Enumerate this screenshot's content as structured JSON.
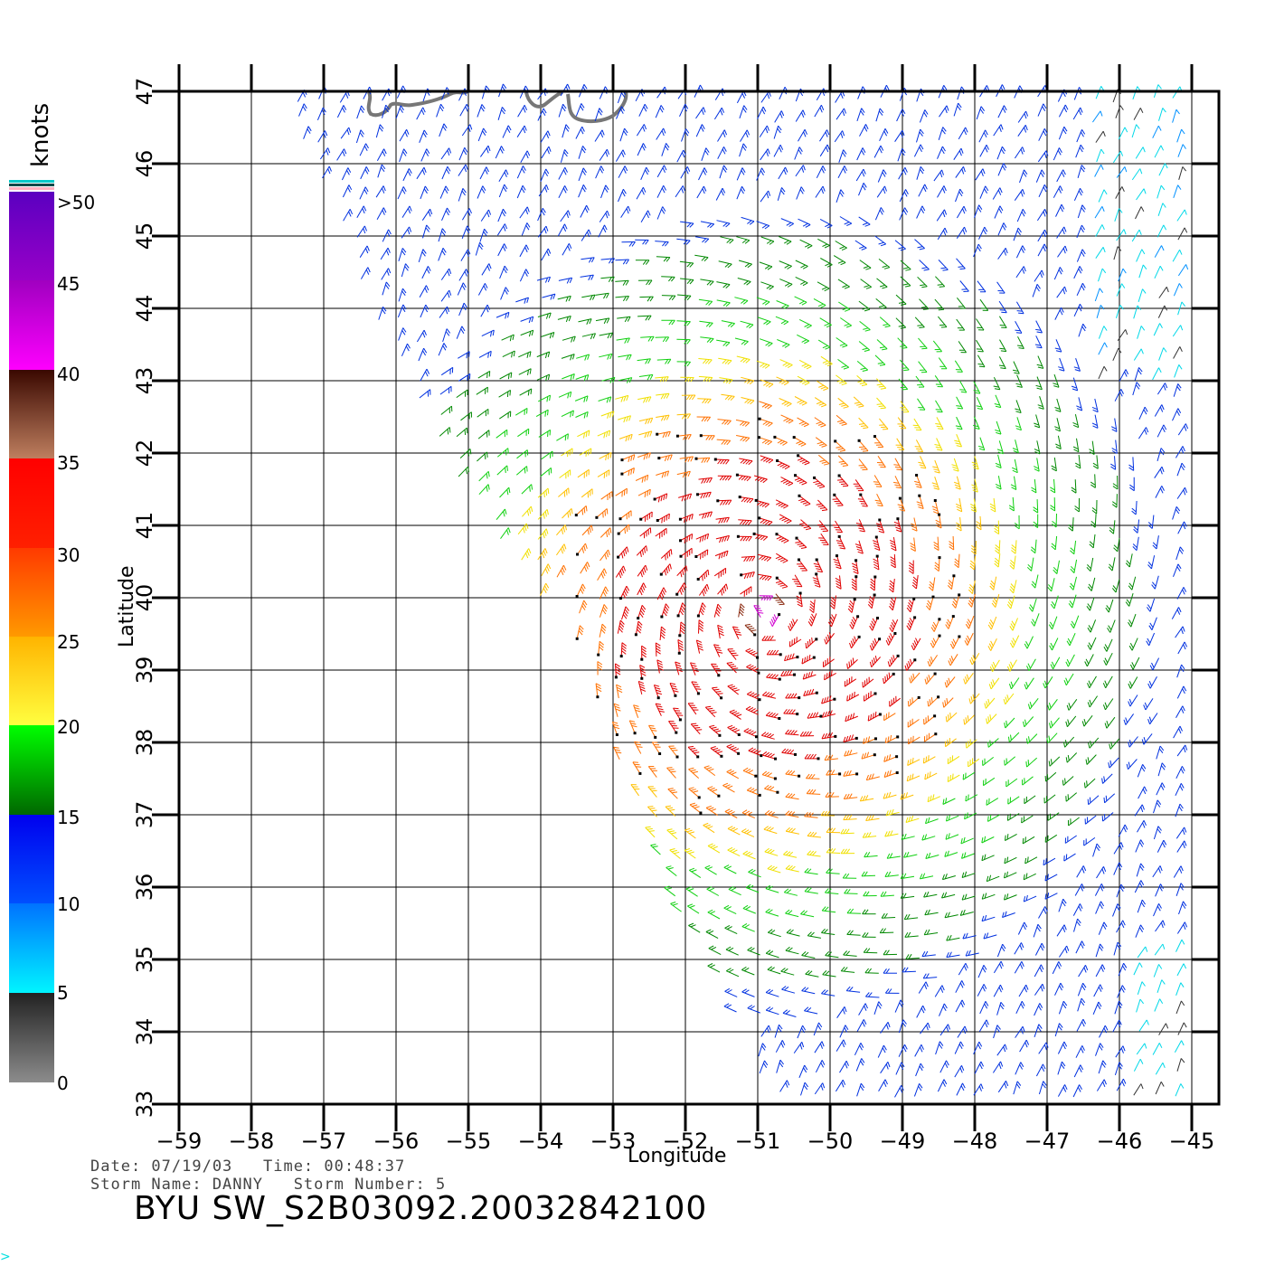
{
  "colorbar": {
    "unit_label": "knots",
    "labels": [
      "0",
      "5",
      "10",
      "15",
      "20",
      "25",
      "30",
      "35",
      "40",
      "45",
      ">50"
    ],
    "colors": {
      "0-5": [
        "#8c8c8c",
        "#222222"
      ],
      "5-10": [
        "#00f6ff",
        "#0072ff"
      ],
      "10-15": [
        "#0050ff",
        "#0000ee"
      ],
      "15-20": [
        "#006600",
        "#00ff00"
      ],
      "20-25": [
        "#ffff40",
        "#ffb400"
      ],
      "25-30": [
        "#ff9a00",
        "#ff3a00"
      ],
      "30-35": [
        "#ff2000",
        "#ff0000"
      ],
      "35-40": [
        "#c08060",
        "#3a0800"
      ],
      "40-45": [
        "#ff00ff",
        "#a000c0"
      ],
      "45-50": [
        "#9a00c8",
        "#5a00c0"
      ]
    }
  },
  "map": {
    "x_axis_title": "Longitude",
    "y_axis_title": "Latitude",
    "lon_range": [
      -59,
      -45
    ],
    "lat_range": [
      33,
      47
    ],
    "lon_ticks": [
      "−59",
      "−58",
      "−57",
      "−56",
      "−55",
      "−54",
      "−53",
      "−52",
      "−51",
      "−50",
      "−49",
      "−48",
      "−47",
      "−46",
      "−45"
    ],
    "lat_ticks": [
      "33",
      "34",
      "35",
      "36",
      "37",
      "38",
      "39",
      "40",
      "41",
      "42",
      "43",
      "44",
      "45",
      "46",
      "47"
    ],
    "grid": true,
    "storm_center": {
      "lon": -50.9,
      "lat": 39.8
    },
    "wind_barb_symbol": "wind-barb"
  },
  "info": {
    "date_line": "Date: 07/19/03   Time: 00:48:37",
    "storm_line": "Storm Name: DANNY   Storm Number: 5",
    "title": "BYU SW_S2B03092.20032842100"
  },
  "corner_mark": ">"
}
